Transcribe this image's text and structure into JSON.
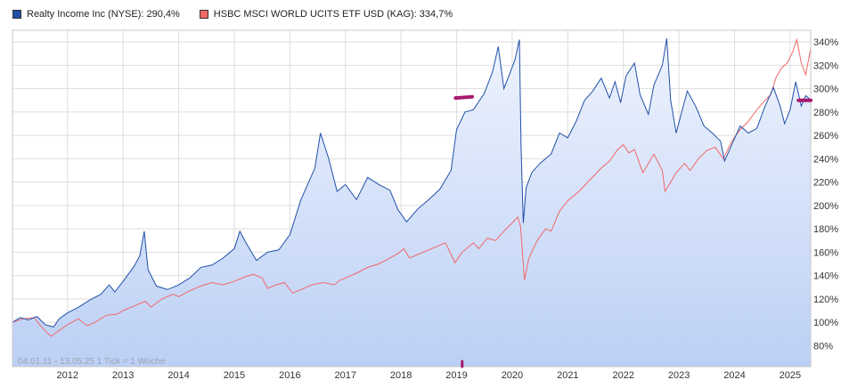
{
  "legend": {
    "series1_label": "Realty Income Inc (NYSE): 290,4%",
    "series2_label": "HSBC MSCI WORLD UCITS ETF USD (KAG): 334,7%"
  },
  "info_text": "04.01.11 - 13.05.25   1 Tick = 1 Woche",
  "colors": {
    "series1": "#2050a8",
    "series2": "#f06868",
    "area_top": "#eef3fd",
    "area_bottom": "#bcd0f5",
    "grid": "#dddddd",
    "marker": "#a8186e"
  },
  "chart_data": {
    "type": "line",
    "title": "",
    "xlabel": "",
    "ylabel": "",
    "ylim": [
      62,
      350
    ],
    "xlim": [
      2011.01,
      2025.37
    ],
    "y_ticks": [
      80,
      100,
      120,
      140,
      160,
      180,
      200,
      220,
      240,
      260,
      280,
      300,
      320,
      340
    ],
    "y_tick_labels": [
      "80%",
      "100%",
      "120%",
      "140%",
      "160%",
      "180%",
      "200%",
      "220%",
      "240%",
      "260%",
      "280%",
      "300%",
      "320%",
      "340%"
    ],
    "x_ticks": [
      2012,
      2013,
      2014,
      2015,
      2016,
      2017,
      2018,
      2019,
      2020,
      2021,
      2022,
      2023,
      2024,
      2025
    ],
    "x_tick_labels": [
      "2012",
      "2013",
      "2014",
      "2015",
      "2016",
      "2017",
      "2018",
      "2019",
      "2020",
      "2021",
      "2022",
      "2023",
      "2024",
      "2025"
    ],
    "grid": true,
    "legend_position": "top-left",
    "series": [
      {
        "name": "Realty Income Inc (NYSE): 290,4%",
        "filled": true,
        "points": [
          [
            2011.01,
            100
          ],
          [
            2011.15,
            104
          ],
          [
            2011.3,
            102
          ],
          [
            2011.45,
            105
          ],
          [
            2011.6,
            98
          ],
          [
            2011.75,
            96
          ],
          [
            2011.85,
            103
          ],
          [
            2012.0,
            108
          ],
          [
            2012.2,
            113
          ],
          [
            2012.4,
            119
          ],
          [
            2012.6,
            124
          ],
          [
            2012.75,
            132
          ],
          [
            2012.85,
            126
          ],
          [
            2013.0,
            135
          ],
          [
            2013.2,
            148
          ],
          [
            2013.3,
            157
          ],
          [
            2013.38,
            178
          ],
          [
            2013.45,
            145
          ],
          [
            2013.6,
            131
          ],
          [
            2013.8,
            128
          ],
          [
            2014.0,
            132
          ],
          [
            2014.2,
            138
          ],
          [
            2014.4,
            147
          ],
          [
            2014.6,
            149
          ],
          [
            2014.8,
            155
          ],
          [
            2015.0,
            163
          ],
          [
            2015.1,
            178
          ],
          [
            2015.2,
            169
          ],
          [
            2015.4,
            153
          ],
          [
            2015.6,
            160
          ],
          [
            2015.8,
            162
          ],
          [
            2016.0,
            175
          ],
          [
            2016.2,
            205
          ],
          [
            2016.45,
            232
          ],
          [
            2016.55,
            262
          ],
          [
            2016.7,
            240
          ],
          [
            2016.85,
            212
          ],
          [
            2017.0,
            218
          ],
          [
            2017.2,
            205
          ],
          [
            2017.4,
            224
          ],
          [
            2017.6,
            218
          ],
          [
            2017.8,
            213
          ],
          [
            2017.95,
            196
          ],
          [
            2018.1,
            186
          ],
          [
            2018.3,
            197
          ],
          [
            2018.5,
            205
          ],
          [
            2018.7,
            214
          ],
          [
            2018.9,
            230
          ],
          [
            2019.0,
            265
          ],
          [
            2019.15,
            280
          ],
          [
            2019.3,
            282
          ],
          [
            2019.5,
            296
          ],
          [
            2019.65,
            315
          ],
          [
            2019.75,
            336
          ],
          [
            2019.85,
            300
          ],
          [
            2019.95,
            312
          ],
          [
            2020.05,
            325
          ],
          [
            2020.13,
            342
          ],
          [
            2020.16,
            250
          ],
          [
            2020.2,
            185
          ],
          [
            2020.25,
            215
          ],
          [
            2020.35,
            228
          ],
          [
            2020.5,
            236
          ],
          [
            2020.7,
            244
          ],
          [
            2020.85,
            262
          ],
          [
            2021.0,
            258
          ],
          [
            2021.15,
            272
          ],
          [
            2021.3,
            290
          ],
          [
            2021.45,
            298
          ],
          [
            2021.6,
            309
          ],
          [
            2021.75,
            292
          ],
          [
            2021.85,
            306
          ],
          [
            2021.95,
            288
          ],
          [
            2022.05,
            311
          ],
          [
            2022.2,
            322
          ],
          [
            2022.3,
            295
          ],
          [
            2022.45,
            278
          ],
          [
            2022.55,
            303
          ],
          [
            2022.7,
            320
          ],
          [
            2022.78,
            343
          ],
          [
            2022.85,
            290
          ],
          [
            2022.95,
            262
          ],
          [
            2023.05,
            280
          ],
          [
            2023.15,
            298
          ],
          [
            2023.3,
            285
          ],
          [
            2023.45,
            268
          ],
          [
            2023.6,
            262
          ],
          [
            2023.75,
            255
          ],
          [
            2023.82,
            238
          ],
          [
            2023.95,
            252
          ],
          [
            2024.1,
            268
          ],
          [
            2024.25,
            262
          ],
          [
            2024.4,
            266
          ],
          [
            2024.55,
            285
          ],
          [
            2024.7,
            301
          ],
          [
            2024.82,
            285
          ],
          [
            2024.9,
            270
          ],
          [
            2025.0,
            282
          ],
          [
            2025.1,
            306
          ],
          [
            2025.2,
            285
          ],
          [
            2025.28,
            294
          ],
          [
            2025.37,
            290.4
          ]
        ]
      },
      {
        "name": "HSBC MSCI WORLD UCITS ETF USD (KAG): 334,7%",
        "filled": false,
        "points": [
          [
            2011.01,
            100
          ],
          [
            2011.2,
            103
          ],
          [
            2011.4,
            104
          ],
          [
            2011.55,
            95
          ],
          [
            2011.7,
            88
          ],
          [
            2011.85,
            93
          ],
          [
            2012.0,
            98
          ],
          [
            2012.2,
            103
          ],
          [
            2012.35,
            97
          ],
          [
            2012.5,
            100
          ],
          [
            2012.7,
            106
          ],
          [
            2012.9,
            107
          ],
          [
            2013.0,
            110
          ],
          [
            2013.2,
            114
          ],
          [
            2013.4,
            118
          ],
          [
            2013.5,
            113
          ],
          [
            2013.7,
            120
          ],
          [
            2013.9,
            124
          ],
          [
            2014.0,
            122
          ],
          [
            2014.2,
            127
          ],
          [
            2014.4,
            131
          ],
          [
            2014.6,
            134
          ],
          [
            2014.8,
            132
          ],
          [
            2015.0,
            135
          ],
          [
            2015.2,
            139
          ],
          [
            2015.35,
            141
          ],
          [
            2015.5,
            138
          ],
          [
            2015.6,
            129
          ],
          [
            2015.75,
            132
          ],
          [
            2015.9,
            134
          ],
          [
            2016.05,
            125
          ],
          [
            2016.2,
            128
          ],
          [
            2016.4,
            132
          ],
          [
            2016.6,
            134
          ],
          [
            2016.8,
            132
          ],
          [
            2016.9,
            136
          ],
          [
            2017.0,
            138
          ],
          [
            2017.2,
            142
          ],
          [
            2017.4,
            147
          ],
          [
            2017.6,
            150
          ],
          [
            2017.8,
            155
          ],
          [
            2017.95,
            159
          ],
          [
            2018.05,
            163
          ],
          [
            2018.15,
            155
          ],
          [
            2018.3,
            158
          ],
          [
            2018.5,
            162
          ],
          [
            2018.7,
            166
          ],
          [
            2018.8,
            168
          ],
          [
            2018.9,
            158
          ],
          [
            2018.97,
            151
          ],
          [
            2019.1,
            160
          ],
          [
            2019.3,
            168
          ],
          [
            2019.4,
            163
          ],
          [
            2019.55,
            172
          ],
          [
            2019.7,
            170
          ],
          [
            2019.85,
            178
          ],
          [
            2020.0,
            185
          ],
          [
            2020.1,
            190
          ],
          [
            2020.15,
            182
          ],
          [
            2020.2,
            150
          ],
          [
            2020.22,
            136
          ],
          [
            2020.3,
            155
          ],
          [
            2020.45,
            170
          ],
          [
            2020.6,
            180
          ],
          [
            2020.7,
            178
          ],
          [
            2020.85,
            195
          ],
          [
            2021.0,
            204
          ],
          [
            2021.2,
            212
          ],
          [
            2021.4,
            222
          ],
          [
            2021.6,
            232
          ],
          [
            2021.75,
            238
          ],
          [
            2021.9,
            248
          ],
          [
            2022.0,
            252
          ],
          [
            2022.1,
            245
          ],
          [
            2022.2,
            248
          ],
          [
            2022.35,
            228
          ],
          [
            2022.45,
            236
          ],
          [
            2022.55,
            244
          ],
          [
            2022.7,
            230
          ],
          [
            2022.75,
            212
          ],
          [
            2022.85,
            220
          ],
          [
            2022.95,
            228
          ],
          [
            2023.1,
            236
          ],
          [
            2023.2,
            230
          ],
          [
            2023.35,
            240
          ],
          [
            2023.5,
            247
          ],
          [
            2023.65,
            250
          ],
          [
            2023.8,
            240
          ],
          [
            2023.95,
            255
          ],
          [
            2024.1,
            265
          ],
          [
            2024.25,
            272
          ],
          [
            2024.4,
            282
          ],
          [
            2024.55,
            290
          ],
          [
            2024.65,
            295
          ],
          [
            2024.75,
            310
          ],
          [
            2024.85,
            318
          ],
          [
            2024.95,
            322
          ],
          [
            2025.05,
            332
          ],
          [
            2025.12,
            342
          ],
          [
            2025.2,
            322
          ],
          [
            2025.28,
            312
          ],
          [
            2025.37,
            334.7
          ]
        ]
      }
    ]
  }
}
